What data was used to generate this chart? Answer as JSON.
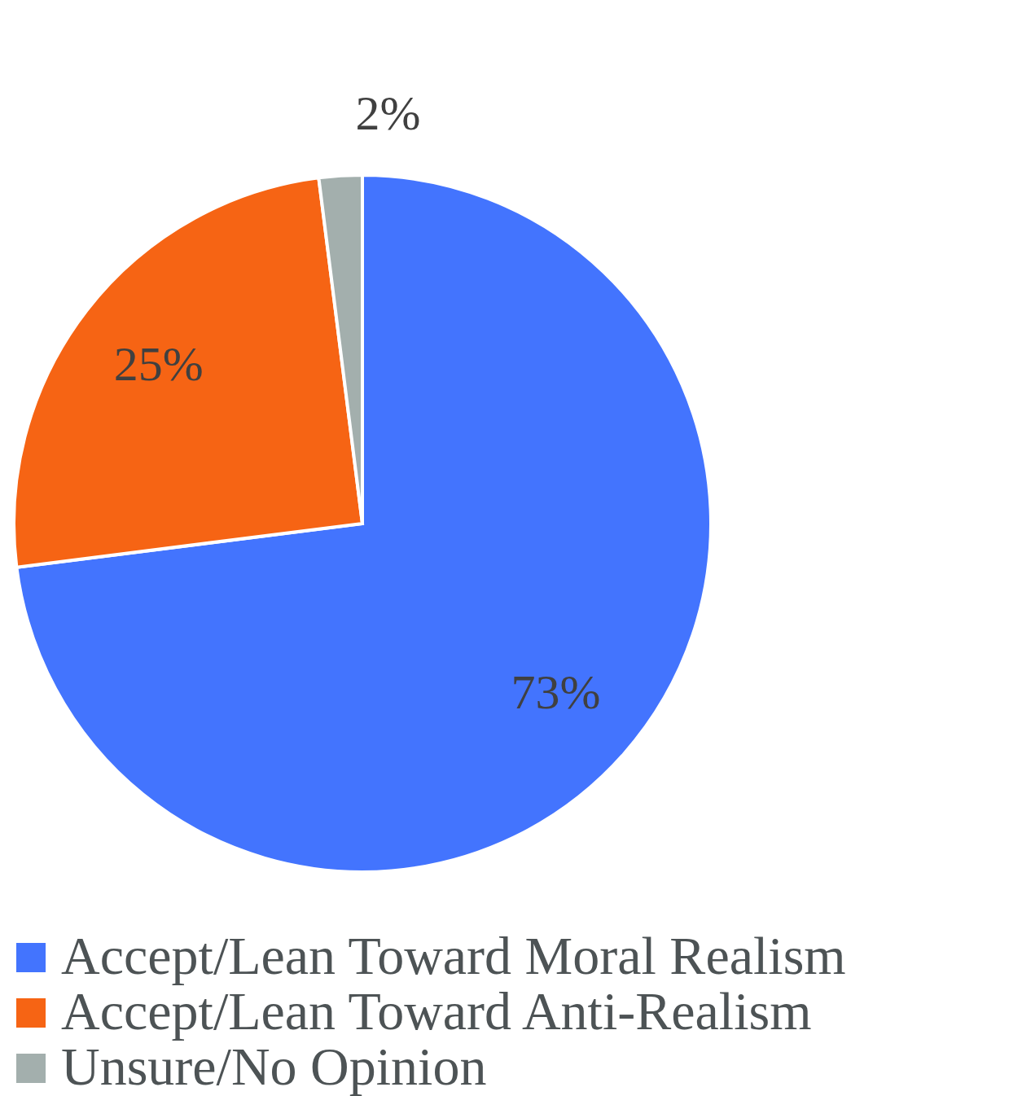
{
  "chart_data": {
    "type": "pie",
    "categories": [
      "Accept/Lean Toward Moral Realism",
      "Accept/Lean Toward Anti-Realism",
      "Unsure/No Opinion"
    ],
    "values": [
      73,
      25,
      2
    ],
    "colors": [
      "#4374fe",
      "#f66414",
      "#a3afad"
    ],
    "value_labels": [
      "73%",
      "25%",
      "2%"
    ],
    "legend": "bottom"
  }
}
